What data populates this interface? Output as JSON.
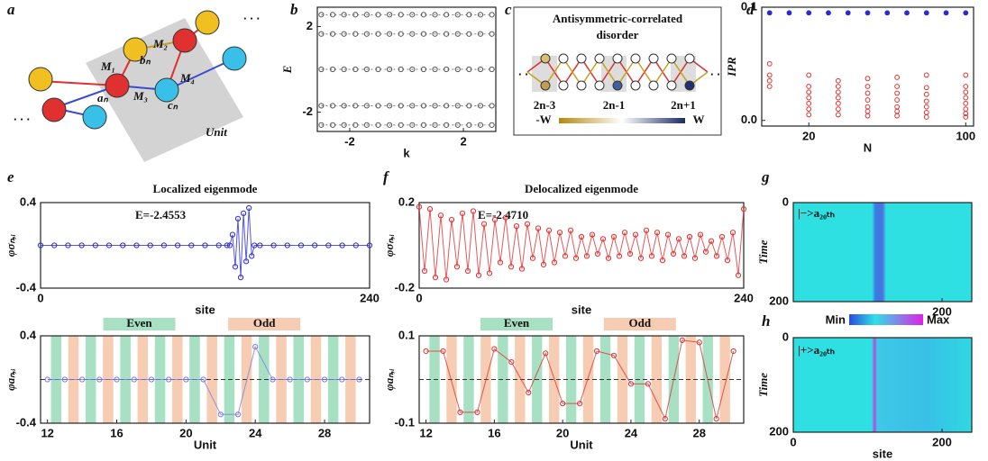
{
  "panel_labels": [
    "a",
    "b",
    "c",
    "d",
    "e",
    "f",
    "g",
    "h"
  ],
  "diagrams": {
    "a": {
      "labels": [
        "M₁",
        "M₂",
        "bₙ",
        "aₙ",
        "M₃",
        "cₙ",
        "M₄",
        "Unit"
      ]
    },
    "c": {
      "title_lines": [
        "Antisymmetric-correlated",
        "disorder"
      ],
      "labels": [
        "2n-3",
        "2n-1",
        "2n+1",
        "-W",
        "W"
      ]
    }
  },
  "chart_data": [
    {
      "type": "line",
      "xlabel": "k",
      "ylabel": "E",
      "line_style": "dotted",
      "x": [
        -3,
        -2.6,
        -2.2,
        -1.8,
        -1.4,
        -1,
        -0.6,
        -0.2,
        0.2,
        0.6,
        1,
        1.4,
        1.8,
        2.2,
        2.6,
        3
      ],
      "series": [
        {
          "color": "#555555",
          "values": [
            2.55,
            2.55,
            2.55,
            2.55,
            2.55,
            2.55,
            2.55,
            2.55,
            2.55,
            2.55,
            2.55,
            2.55,
            2.55,
            2.55,
            2.55,
            2.55
          ]
        },
        {
          "color": "#555555",
          "values": [
            1.65,
            1.65,
            1.65,
            1.65,
            1.65,
            1.65,
            1.65,
            1.65,
            1.65,
            1.65,
            1.65,
            1.65,
            1.65,
            1.65,
            1.65,
            1.65
          ]
        },
        {
          "color": "#555555",
          "values": [
            0,
            0,
            0,
            0,
            0,
            0,
            0,
            0,
            0,
            0,
            0,
            0,
            0,
            0,
            0,
            0
          ]
        },
        {
          "color": "#555555",
          "values": [
            -1.7,
            -1.7,
            -1.7,
            -1.7,
            -1.7,
            -1.7,
            -1.7,
            -1.7,
            -1.7,
            -1.7,
            -1.7,
            -1.7,
            -1.7,
            -1.7,
            -1.7,
            -1.7
          ]
        },
        {
          "color": "#555555",
          "values": [
            -2.6,
            -2.6,
            -2.6,
            -2.6,
            -2.6,
            -2.6,
            -2.6,
            -2.6,
            -2.6,
            -2.6,
            -2.6,
            -2.6,
            -2.6,
            -2.6,
            -2.6,
            -2.6
          ]
        }
      ],
      "xlim": [
        -3.14,
        3.14
      ],
      "xticks": [
        -2,
        2
      ],
      "ylim": [
        -2.9,
        2.9
      ],
      "yticks": [
        -2,
        2
      ]
    },
    {
      "type": "scatter",
      "xlabel": "N",
      "ylabel": "IPR",
      "series": [
        {
          "color": "#2a2ad8",
          "marker": "filled",
          "x": [
            0,
            10,
            20,
            30,
            40,
            50,
            60,
            70,
            80,
            90,
            100
          ],
          "values": [
            0.095,
            0.095,
            0.095,
            0.095,
            0.095,
            0.095,
            0.095,
            0.095,
            0.095,
            0.095,
            0.095
          ]
        },
        {
          "color": "#e03030",
          "marker": "open",
          "x": [
            0,
            0,
            0,
            0,
            20,
            20,
            20,
            20,
            20,
            20,
            20,
            35,
            35,
            35,
            35,
            35,
            35,
            35,
            50,
            50,
            50,
            50,
            50,
            50,
            50,
            65,
            65,
            65,
            65,
            65,
            65,
            65,
            80,
            80,
            80,
            80,
            80,
            80,
            80,
            100,
            100,
            100,
            100,
            100,
            100,
            100,
            100
          ],
          "values": [
            0.03,
            0.035,
            0.04,
            0.05,
            0.005,
            0.01,
            0.015,
            0.02,
            0.025,
            0.03,
            0.04,
            0.005,
            0.01,
            0.015,
            0.02,
            0.025,
            0.03,
            0.035,
            0.004,
            0.008,
            0.012,
            0.018,
            0.024,
            0.03,
            0.037,
            0.004,
            0.008,
            0.012,
            0.018,
            0.024,
            0.03,
            0.038,
            0.003,
            0.007,
            0.012,
            0.017,
            0.023,
            0.029,
            0.04,
            0.003,
            0.006,
            0.01,
            0.015,
            0.02,
            0.025,
            0.03,
            0.04
          ]
        }
      ],
      "xlim": [
        -4,
        104
      ],
      "xticks": [
        20,
        100
      ],
      "ylim": [
        -0.005,
        0.1
      ],
      "yticks": [
        {
          "value": 0,
          "label": "0.0"
        },
        0.1
      ]
    },
    {
      "type": "line",
      "title": "Localized eigenmode",
      "annotation": "E=-2.4553",
      "title_color": "#2a2ad8",
      "xlabel": "site",
      "ylabel": "φσₙ,ᵢ",
      "series": [
        {
          "color": "#2a2ad8",
          "x": [
            0,
            10,
            20,
            30,
            40,
            50,
            60,
            70,
            80,
            90,
            100,
            110,
            120,
            130,
            136,
            138,
            140,
            142,
            144,
            146,
            148,
            150,
            152,
            154,
            156,
            160,
            170,
            180,
            190,
            200,
            210,
            220,
            230,
            240
          ],
          "values": [
            0,
            0,
            0,
            0,
            0,
            0,
            0,
            0,
            0,
            0,
            0,
            0,
            0,
            0,
            0,
            0,
            0.1,
            -0.2,
            0.25,
            -0.3,
            0.3,
            -0.15,
            0.35,
            -0.1,
            0,
            0,
            0,
            0,
            0,
            0,
            0,
            0,
            0,
            0
          ]
        }
      ],
      "xlim": [
        0,
        240
      ],
      "xticks": [
        0,
        240
      ],
      "ylim": [
        -0.4,
        0.4
      ],
      "yticks": [
        0.4,
        -0.4
      ]
    },
    {
      "type": "line",
      "xlabel": "Unit",
      "ylabel": "φaₙ,ᵢ",
      "bands": [
        {
          "name": "Even",
          "color": "#a8e0c4"
        },
        {
          "name": "Odd",
          "color": "#f6cdb2"
        }
      ],
      "series": [
        {
          "color": "#7a7ae6",
          "x": [
            12,
            13,
            14,
            15,
            16,
            17,
            18,
            19,
            20,
            21,
            22,
            23,
            24,
            25,
            26,
            27,
            28,
            29,
            30
          ],
          "values": [
            0,
            0,
            0,
            0,
            0,
            0,
            0,
            0,
            0,
            0,
            -0.32,
            -0.32,
            0.3,
            0,
            0,
            0,
            0,
            0,
            0
          ]
        }
      ],
      "xlim": [
        11.6,
        30.6
      ],
      "xticks": [
        12,
        16,
        20,
        24,
        28
      ],
      "ylim": [
        -0.4,
        0.4
      ],
      "yticks": [
        0.4,
        -0.4
      ]
    },
    {
      "type": "line",
      "title": "Delocalized eigenmode",
      "annotation": "E=-2.4710",
      "title_color": "#e03030",
      "xlabel": "site",
      "ylabel": "φσₙ,ᵢ",
      "series": [
        {
          "color": "#e03030",
          "x": [
            0,
            4,
            8,
            12,
            16,
            20,
            24,
            28,
            32,
            36,
            40,
            44,
            48,
            52,
            56,
            60,
            64,
            68,
            72,
            76,
            80,
            84,
            88,
            92,
            96,
            100,
            104,
            108,
            112,
            116,
            120,
            124,
            128,
            132,
            136,
            140,
            144,
            148,
            152,
            156,
            160,
            164,
            168,
            172,
            176,
            180,
            184,
            188,
            192,
            196,
            200,
            204,
            208,
            212,
            216,
            220,
            224,
            228,
            232,
            236,
            240
          ],
          "values": [
            0.18,
            -0.12,
            0.17,
            -0.15,
            0.14,
            -0.16,
            0.12,
            -0.1,
            0.15,
            -0.12,
            0.16,
            -0.14,
            0.1,
            -0.13,
            0.12,
            -0.08,
            0.13,
            -0.1,
            0.09,
            -0.11,
            0.1,
            -0.06,
            0.08,
            -0.09,
            0.07,
            -0.08,
            0.06,
            -0.05,
            0.07,
            -0.06,
            0.04,
            -0.05,
            0.05,
            -0.04,
            0.03,
            -0.06,
            0.04,
            -0.05,
            0.06,
            -0.04,
            0.05,
            -0.06,
            0.07,
            -0.05,
            0.06,
            -0.07,
            0.05,
            -0.04,
            0.03,
            -0.05,
            0.04,
            -0.06,
            0.05,
            -0.03,
            0.02,
            -0.05,
            0.04,
            -0.07,
            0.06,
            -0.14,
            0.17
          ]
        }
      ],
      "xlim": [
        0,
        240
      ],
      "xticks": [
        0,
        240
      ],
      "ylim": [
        -0.2,
        0.2
      ],
      "yticks": [
        0.2,
        -0.2
      ]
    },
    {
      "type": "line",
      "xlabel": "Unit",
      "ylabel": "φaₙ,ᵢ",
      "bands": [
        {
          "name": "Even",
          "color": "#a8e0c4"
        },
        {
          "name": "Odd",
          "color": "#f6cdb2"
        }
      ],
      "series": [
        {
          "color": "#e03030",
          "x": [
            12,
            13,
            14,
            15,
            16,
            17,
            18,
            19,
            20,
            21,
            22,
            23,
            24,
            25,
            26,
            27,
            28,
            29,
            30
          ],
          "values": [
            0.065,
            0.065,
            -0.075,
            -0.075,
            0.07,
            0.04,
            -0.03,
            0.06,
            -0.055,
            -0.055,
            0.065,
            0.055,
            -0.01,
            -0.01,
            -0.09,
            0.09,
            0.085,
            -0.09,
            0.065
          ]
        }
      ],
      "xlim": [
        11.6,
        30.6
      ],
      "xticks": [
        12,
        16,
        20,
        24,
        28
      ],
      "ylim": [
        -0.1,
        0.1
      ],
      "yticks": [
        0.1,
        -0.1
      ]
    },
    {
      "type": "heatmap",
      "annotation": "|−>a₂₀ₜₕ",
      "ylabel": "Time",
      "xlim": [
        0,
        240
      ],
      "xticks": [
        200
      ],
      "ylim": [
        200,
        0
      ],
      "yticks": [
        0,
        200
      ]
    },
    {
      "type": "heatmap",
      "annotation": "|+>a₂₀ₜₕ",
      "ylabel": "Time",
      "xlabel": "site",
      "colorbar_labels": [
        "Min",
        "Max"
      ],
      "xlim": [
        0,
        240
      ],
      "xticks": [
        0,
        200
      ],
      "ylim": [
        200,
        0
      ],
      "yticks": [
        0,
        200
      ]
    }
  ]
}
